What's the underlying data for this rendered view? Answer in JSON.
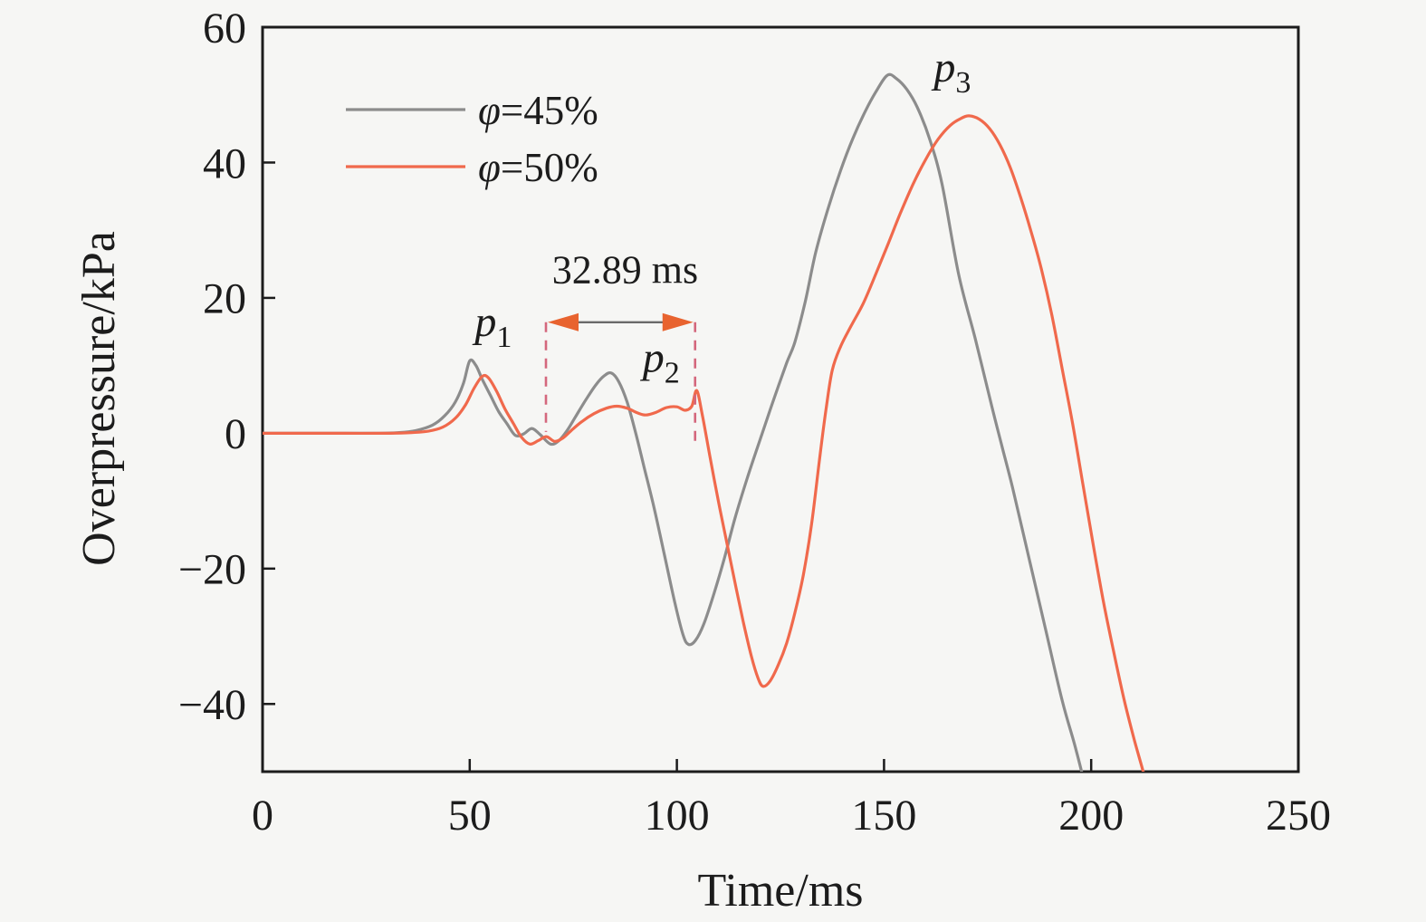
{
  "figure": {
    "background": "#f6f6f4",
    "axis_color": "#1c1c1c"
  },
  "chart_data": {
    "type": "line",
    "title": "",
    "xlabel": "Time/ms",
    "ylabel": "Overpressure/kPa",
    "xlim": [
      0,
      250
    ],
    "ylim": [
      -50,
      60
    ],
    "grid": false,
    "legend_position": "upper-left-inside",
    "x_ticks": [
      {
        "v": 0,
        "label": "0"
      },
      {
        "v": 50,
        "label": "50"
      },
      {
        "v": 100,
        "label": "100"
      },
      {
        "v": 150,
        "label": "150"
      },
      {
        "v": 200,
        "label": "200"
      },
      {
        "v": 250,
        "label": "250"
      }
    ],
    "y_ticks": [
      {
        "v": 60,
        "label": "60"
      },
      {
        "v": 40,
        "label": "40"
      },
      {
        "v": 20,
        "label": "20"
      },
      {
        "v": 0,
        "label": "0"
      },
      {
        "v": -20,
        "label": "−20"
      },
      {
        "v": -40,
        "label": "−40"
      }
    ],
    "series": [
      {
        "name": "φ=45%",
        "color": "#8c8c8c",
        "points": [
          [
            0,
            0
          ],
          [
            10,
            0
          ],
          [
            20,
            0
          ],
          [
            28,
            0
          ],
          [
            33,
            0.1
          ],
          [
            37,
            0.4
          ],
          [
            41,
            1.2
          ],
          [
            44,
            2.6
          ],
          [
            46.5,
            4.6
          ],
          [
            48.5,
            7.4
          ],
          [
            50,
            10.7
          ],
          [
            51.5,
            10.0
          ],
          [
            53,
            8.0
          ],
          [
            55,
            5.6
          ],
          [
            57,
            3.2
          ],
          [
            59,
            1.4
          ],
          [
            61,
            -0.3
          ],
          [
            63,
            -0.1
          ],
          [
            65,
            0.7
          ],
          [
            67,
            -0.2
          ],
          [
            69.5,
            -1.6
          ],
          [
            71.5,
            -1.1
          ],
          [
            73.5,
            0.4
          ],
          [
            75.5,
            2.4
          ],
          [
            78,
            4.9
          ],
          [
            80.5,
            7.2
          ],
          [
            82.5,
            8.5
          ],
          [
            84.2,
            8.9
          ],
          [
            86,
            7.6
          ],
          [
            88,
            4.6
          ],
          [
            90,
            0.2
          ],
          [
            92,
            -4.8
          ],
          [
            94.5,
            -11.0
          ],
          [
            97,
            -18.0
          ],
          [
            99.5,
            -25.0
          ],
          [
            101.5,
            -29.8
          ],
          [
            102.8,
            -31.2
          ],
          [
            104.5,
            -30.6
          ],
          [
            106.5,
            -28.2
          ],
          [
            109,
            -23.6
          ],
          [
            111.5,
            -18.4
          ],
          [
            114,
            -12.6
          ],
          [
            117,
            -6.6
          ],
          [
            120.6,
            0
          ],
          [
            123.5,
            5.2
          ],
          [
            126.5,
            10.4
          ],
          [
            128.5,
            13.5
          ],
          [
            131,
            19.5
          ],
          [
            133.5,
            26.7
          ],
          [
            136.5,
            33.2
          ],
          [
            139.5,
            38.8
          ],
          [
            142.5,
            43.6
          ],
          [
            145.5,
            47.6
          ],
          [
            148,
            50.4
          ],
          [
            150.8,
            52.9
          ],
          [
            153,
            52.4
          ],
          [
            155.5,
            50.8
          ],
          [
            158,
            48.2
          ],
          [
            161,
            43.5
          ],
          [
            164,
            36.8
          ],
          [
            168,
            23.5
          ],
          [
            172,
            14.0
          ],
          [
            176,
            4.0
          ],
          [
            178.5,
            -2.0
          ],
          [
            181,
            -8.0
          ],
          [
            185,
            -18.5
          ],
          [
            189,
            -29.0
          ],
          [
            193,
            -39.5
          ],
          [
            196,
            -46.0
          ],
          [
            198.5,
            -52.0
          ],
          [
            200,
            -56.0
          ]
        ]
      },
      {
        "name": "φ=50%",
        "color": "#f0694c",
        "points": [
          [
            0,
            0
          ],
          [
            10,
            0
          ],
          [
            20,
            0
          ],
          [
            30,
            0
          ],
          [
            36,
            0.1
          ],
          [
            40,
            0.3
          ],
          [
            43.5,
            0.9
          ],
          [
            46.5,
            2.2
          ],
          [
            49,
            4.2
          ],
          [
            51,
            6.6
          ],
          [
            53,
            8.4
          ],
          [
            54.5,
            8.2
          ],
          [
            56.5,
            6.2
          ],
          [
            58.5,
            3.6
          ],
          [
            60.5,
            1.5
          ],
          [
            62.5,
            -0.6
          ],
          [
            64.5,
            -1.6
          ],
          [
            66.5,
            -1.1
          ],
          [
            68.5,
            -0.5
          ],
          [
            70.5,
            -1.2
          ],
          [
            72.5,
            -0.7
          ],
          [
            74.5,
            0.4
          ],
          [
            77,
            1.7
          ],
          [
            80,
            2.9
          ],
          [
            83,
            3.7
          ],
          [
            85.5,
            4.0
          ],
          [
            88,
            3.7
          ],
          [
            90.5,
            3.0
          ],
          [
            92.5,
            2.7
          ],
          [
            95,
            3.1
          ],
          [
            97.5,
            3.8
          ],
          [
            100,
            3.9
          ],
          [
            102,
            3.4
          ],
          [
            103.6,
            4.0
          ],
          [
            104.8,
            6.3
          ],
          [
            106.2,
            2.5
          ],
          [
            108,
            -3.5
          ],
          [
            110,
            -10.0
          ],
          [
            112,
            -16.0
          ],
          [
            114,
            -22.0
          ],
          [
            116,
            -27.8
          ],
          [
            118,
            -33.0
          ],
          [
            119.6,
            -36.2
          ],
          [
            120.8,
            -37.4
          ],
          [
            122.5,
            -36.6
          ],
          [
            124.5,
            -34.2
          ],
          [
            126.5,
            -31.0
          ],
          [
            128.5,
            -26.5
          ],
          [
            130.5,
            -21.0
          ],
          [
            132.5,
            -13.5
          ],
          [
            134.5,
            -3.5
          ],
          [
            136,
            3.5
          ],
          [
            137.5,
            9.3
          ],
          [
            139.5,
            12.8
          ],
          [
            142,
            15.8
          ],
          [
            145,
            19.2
          ],
          [
            148,
            23.5
          ],
          [
            151,
            28.0
          ],
          [
            154,
            32.6
          ],
          [
            157,
            36.8
          ],
          [
            160,
            40.4
          ],
          [
            163,
            43.4
          ],
          [
            166,
            45.5
          ],
          [
            168.5,
            46.5
          ],
          [
            170.5,
            46.9
          ],
          [
            173,
            46.4
          ],
          [
            175.5,
            45.0
          ],
          [
            178,
            42.6
          ],
          [
            180.5,
            39.2
          ],
          [
            183,
            34.8
          ],
          [
            185.5,
            29.8
          ],
          [
            188,
            24.2
          ],
          [
            190.5,
            17.5
          ],
          [
            193,
            9.5
          ],
          [
            195.5,
            1.5
          ],
          [
            198,
            -7.5
          ],
          [
            200.5,
            -16.5
          ],
          [
            203,
            -25.0
          ],
          [
            205.5,
            -32.5
          ],
          [
            208,
            -39.5
          ],
          [
            210.5,
            -45.5
          ],
          [
            213,
            -51.0
          ],
          [
            214.5,
            -55.0
          ]
        ]
      }
    ],
    "annotations": {
      "peak_labels": [
        {
          "base": "p",
          "sub": "1",
          "t": 55.7,
          "v": 14.4
        },
        {
          "base": "p",
          "sub": "2",
          "t": 96.2,
          "v": 9.1
        },
        {
          "base": "p",
          "sub": "3",
          "t": 166.5,
          "v": 52.0
        }
      ],
      "interval_marker": {
        "label": "32.89 ms",
        "label_t": 87.5,
        "label_v": 22.2,
        "guide_t1": 68.4,
        "guide_t2": 104.4,
        "guide_v_top": 16.4,
        "guide_v_bottom1": 0.2,
        "guide_v_bottom2": -1.2,
        "arrow_v": 16.4,
        "label_color": "#e08d66",
        "arrow_color": "#e8632f",
        "shaft_color": "#6a6a6a",
        "guide_color": "#d4677d"
      }
    }
  }
}
